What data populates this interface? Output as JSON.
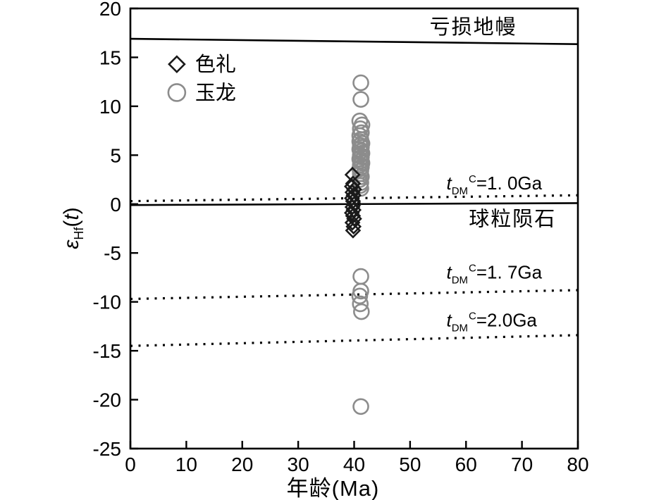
{
  "chart_data": {
    "type": "scatter",
    "title": "",
    "xlabel": "年龄(Ma)",
    "ylabel_parts": {
      "main": "ε",
      "sub": "Hf",
      "open": "(",
      "var": "t",
      "close": ")"
    },
    "xlim": [
      0,
      80
    ],
    "ylim": [
      -25,
      20
    ],
    "xticks": [
      0,
      10,
      20,
      30,
      40,
      50,
      60,
      70,
      80
    ],
    "yticks": [
      20,
      15,
      10,
      5,
      0,
      -5,
      -10,
      -15,
      -20,
      -25
    ],
    "grid": false,
    "legend_position": "upper-left-inside",
    "series": [
      {
        "name": "玉龙",
        "marker": "circle",
        "color": "#8c8c8c",
        "points": [
          [
            41.2,
            12.4
          ],
          [
            41.2,
            10.7
          ],
          [
            41.0,
            8.5
          ],
          [
            41.4,
            8.1
          ],
          [
            41.1,
            7.7
          ],
          [
            41.3,
            7.3
          ],
          [
            41.0,
            7.0
          ],
          [
            41.2,
            6.6
          ],
          [
            41.0,
            6.4
          ],
          [
            41.4,
            6.2
          ],
          [
            41.1,
            6.0
          ],
          [
            41.3,
            5.8
          ],
          [
            41.0,
            5.6
          ],
          [
            41.2,
            5.4
          ],
          [
            41.4,
            5.2
          ],
          [
            41.1,
            5.0
          ],
          [
            41.3,
            4.8
          ],
          [
            41.0,
            4.6
          ],
          [
            41.2,
            4.4
          ],
          [
            41.4,
            4.2
          ],
          [
            41.1,
            4.0
          ],
          [
            41.3,
            3.8
          ],
          [
            41.0,
            3.6
          ],
          [
            41.2,
            3.4
          ],
          [
            41.1,
            3.1
          ],
          [
            41.3,
            2.8
          ],
          [
            41.0,
            2.5
          ],
          [
            41.2,
            2.2
          ],
          [
            41.1,
            1.9
          ],
          [
            41.2,
            1.6
          ],
          [
            41.2,
            -7.4
          ],
          [
            41.2,
            -8.9
          ],
          [
            41.0,
            -9.4
          ],
          [
            41.1,
            -10.2
          ],
          [
            41.3,
            -11.0
          ],
          [
            41.2,
            -20.7
          ]
        ]
      },
      {
        "name": "色礼",
        "marker": "diamond",
        "color": "#1a1a1a",
        "points": [
          [
            39.7,
            3.0
          ],
          [
            39.8,
            2.1
          ],
          [
            39.6,
            1.8
          ],
          [
            40.0,
            1.5
          ],
          [
            39.7,
            1.2
          ],
          [
            39.9,
            0.9
          ],
          [
            39.6,
            0.6
          ],
          [
            39.8,
            0.3
          ],
          [
            40.0,
            0.0
          ],
          [
            39.7,
            -0.3
          ],
          [
            39.9,
            -0.6
          ],
          [
            39.6,
            -0.9
          ],
          [
            39.8,
            -1.2
          ],
          [
            40.0,
            -1.5
          ],
          [
            39.7,
            -1.9
          ],
          [
            39.9,
            -2.3
          ],
          [
            39.8,
            -2.7
          ]
        ]
      }
    ],
    "legend": [
      {
        "label": "色礼",
        "marker": "diamond",
        "color": "#1a1a1a",
        "x": 8.3,
        "y": 14.3
      },
      {
        "label": "玉龙",
        "marker": "circle",
        "color": "#8c8c8c",
        "x": 8.3,
        "y": 11.4
      }
    ],
    "ref_lines": [
      {
        "name": "depleted-mantle-line",
        "style": "solid",
        "y": [
          16.9,
          16.35
        ]
      },
      {
        "name": "chondrite-line",
        "style": "solid",
        "y": [
          -0.1,
          0.1
        ]
      },
      {
        "name": "tdm-1.0-line",
        "style": "dotted",
        "y": [
          0.3,
          0.9
        ]
      },
      {
        "name": "tdm-1.7-line",
        "style": "dotted",
        "y": [
          -9.7,
          -8.8
        ]
      },
      {
        "name": "tdm-2.0-line",
        "style": "dotted",
        "y": [
          -14.5,
          -13.4
        ]
      }
    ],
    "annotations": [
      {
        "name": "depleted-mantle-label",
        "text": "亏损地幔",
        "x": 53.5,
        "y": 17.4
      },
      {
        "name": "chondrite-label",
        "text": "球粒陨石",
        "x": 60.5,
        "y": -2.2
      }
    ],
    "tdm_labels": [
      {
        "name": "tdm-1.0-label",
        "t": "t",
        "sub": "DM",
        "sup": "C",
        "rest": "=1. 0Ga",
        "x": 56.5,
        "y": 1.5
      },
      {
        "name": "tdm-1.7-label",
        "t": "t",
        "sub": "DM",
        "sup": "C",
        "rest": "=1. 7Ga",
        "x": 56.5,
        "y": -7.6
      },
      {
        "name": "tdm-2.0-label",
        "t": "t",
        "sub": "DM",
        "sup": "C",
        "rest": "=2.0Ga",
        "x": 56.5,
        "y": -12.5
      }
    ]
  }
}
